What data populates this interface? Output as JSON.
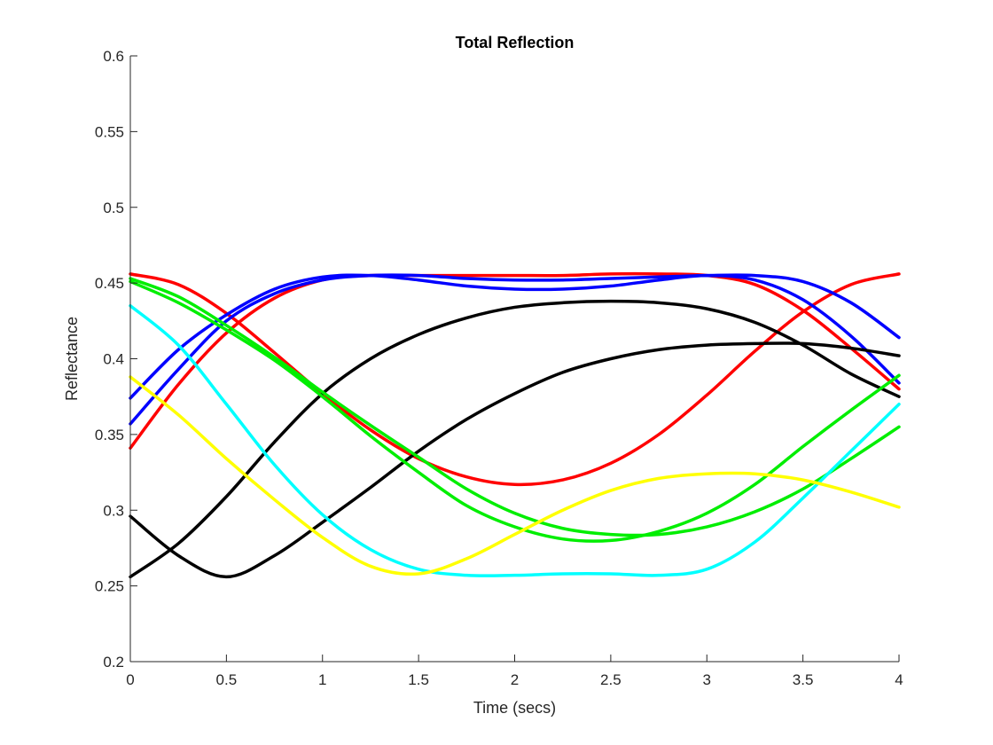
{
  "chart_data": {
    "type": "line",
    "title": "Total Reflection",
    "xlabel": "Time (secs)",
    "ylabel": "Reflectance",
    "xlim": [
      0,
      4
    ],
    "ylim": [
      0.2,
      0.6
    ],
    "xticks": [
      0,
      0.5,
      1,
      1.5,
      2,
      2.5,
      3,
      3.5,
      4
    ],
    "xtick_labels": [
      "0",
      "0.5",
      "1",
      "1.5",
      "2",
      "2.5",
      "3",
      "3.5",
      "4"
    ],
    "yticks": [
      0.2,
      0.25,
      0.3,
      0.35,
      0.4,
      0.45,
      0.5,
      0.55,
      0.6
    ],
    "ytick_labels": [
      "0.2",
      "0.25",
      "0.3",
      "0.35",
      "0.4",
      "0.45",
      "0.5",
      "0.55",
      "0.6"
    ],
    "grid": false,
    "legend": "none",
    "x": [
      0,
      0.25,
      0.5,
      0.75,
      1,
      1.25,
      1.5,
      1.75,
      2,
      2.25,
      2.5,
      2.75,
      3,
      3.25,
      3.5,
      3.75,
      4
    ],
    "series": [
      {
        "color": "#ff0000",
        "values": [
          0.456,
          0.449,
          0.43,
          0.404,
          0.377,
          0.353,
          0.334,
          0.322,
          0.317,
          0.32,
          0.331,
          0.35,
          0.376,
          0.405,
          0.431,
          0.449,
          0.456
        ]
      },
      {
        "color": "#ff0000",
        "values": [
          0.341,
          0.383,
          0.417,
          0.44,
          0.452,
          0.455,
          0.455,
          0.455,
          0.455,
          0.455,
          0.456,
          0.456,
          0.455,
          0.449,
          0.432,
          0.407,
          0.38
        ]
      },
      {
        "color": "#0000ff",
        "values": [
          0.374,
          0.406,
          0.429,
          0.446,
          0.454,
          0.455,
          0.452,
          0.448,
          0.446,
          0.446,
          0.448,
          0.452,
          0.455,
          0.452,
          0.439,
          0.415,
          0.384
        ]
      },
      {
        "color": "#0000ff",
        "values": [
          0.357,
          0.393,
          0.425,
          0.443,
          0.452,
          0.455,
          0.455,
          0.453,
          0.452,
          0.452,
          0.453,
          0.454,
          0.455,
          0.455,
          0.451,
          0.437,
          0.414
        ]
      },
      {
        "color": "#000000",
        "values": [
          0.256,
          0.278,
          0.309,
          0.345,
          0.377,
          0.4,
          0.416,
          0.427,
          0.434,
          0.437,
          0.438,
          0.437,
          0.433,
          0.424,
          0.409,
          0.39,
          0.375
        ]
      },
      {
        "color": "#000000",
        "values": [
          0.296,
          0.27,
          0.256,
          0.27,
          0.292,
          0.315,
          0.339,
          0.36,
          0.377,
          0.391,
          0.4,
          0.406,
          0.409,
          0.41,
          0.41,
          0.407,
          0.402
        ]
      },
      {
        "color": "#00ee00",
        "values": [
          0.453,
          0.441,
          0.422,
          0.401,
          0.378,
          0.356,
          0.335,
          0.314,
          0.298,
          0.288,
          0.284,
          0.284,
          0.289,
          0.299,
          0.314,
          0.334,
          0.355
        ]
      },
      {
        "color": "#00ee00",
        "values": [
          0.451,
          0.437,
          0.419,
          0.399,
          0.375,
          0.349,
          0.325,
          0.303,
          0.289,
          0.281,
          0.28,
          0.286,
          0.298,
          0.317,
          0.342,
          0.366,
          0.389
        ]
      },
      {
        "color": "#00ffff",
        "values": [
          0.435,
          0.409,
          0.37,
          0.33,
          0.297,
          0.274,
          0.261,
          0.257,
          0.257,
          0.258,
          0.258,
          0.257,
          0.261,
          0.279,
          0.308,
          0.339,
          0.37
        ]
      },
      {
        "color": "#ffff00",
        "values": [
          0.388,
          0.363,
          0.334,
          0.307,
          0.282,
          0.263,
          0.258,
          0.268,
          0.284,
          0.3,
          0.313,
          0.321,
          0.324,
          0.324,
          0.32,
          0.312,
          0.302
        ]
      }
    ]
  }
}
